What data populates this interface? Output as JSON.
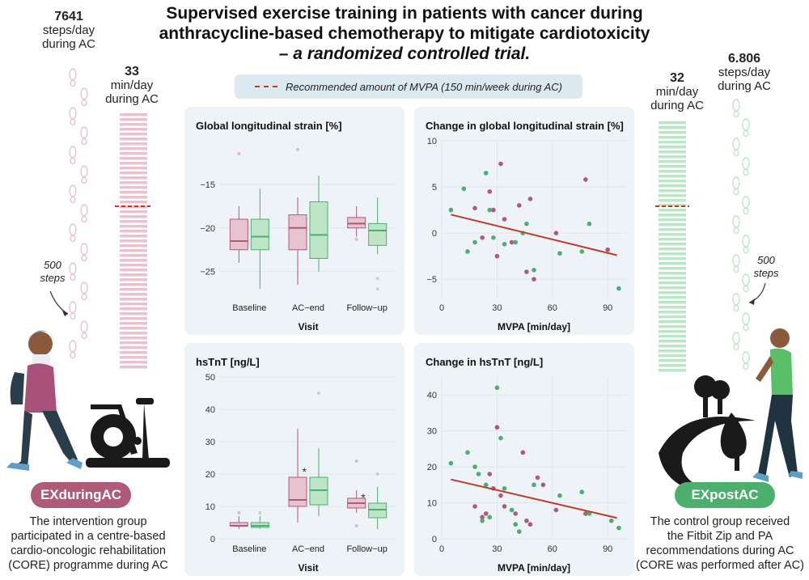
{
  "title": {
    "line1": "Supervised exercise training in patients with cancer during",
    "line2": "anthracycline-based chemotherapy to mitigate cardiotoxicity",
    "line3": "– a randomized controlled trial."
  },
  "legend": {
    "label": "Recommended amount of MVPA (150 min/week during AC)"
  },
  "left": {
    "steps_value": "7641",
    "steps_unit": "steps/day",
    "steps_period": "during AC",
    "min_value": "33",
    "min_unit": "min/day",
    "min_period": "during AC",
    "steps_note_1": "500",
    "steps_note_2": "steps",
    "badge": "EXduringAC",
    "desc_1": "The intervention group",
    "desc_2": "participated in a centre-based",
    "desc_3": "cardio-oncologic rehabilitation",
    "desc_4": "(CORE) programme during AC"
  },
  "right": {
    "steps_value": "6.806",
    "steps_unit": "steps/day",
    "steps_period": "during AC",
    "min_value": "32",
    "min_unit": "min/day",
    "min_period": "during AC",
    "steps_note_1": "500",
    "steps_note_2": "steps",
    "badge": "EXpostAC",
    "desc_1": "The control group received",
    "desc_2": "the Fitbit Zip and PA",
    "desc_3": "recommendations during AC",
    "desc_4": "(CORE was performed after AC)"
  },
  "colors": {
    "ex_during": "#b05a7a",
    "ex_post": "#4caf6e",
    "trend": "#c0392b",
    "ex_during_light": "#e6c3cf",
    "ex_post_light": "#bfe5c9"
  },
  "chart_data": [
    {
      "type": "box",
      "title": "Global longitudinal strain [%]",
      "xlabel": "Visit",
      "categories": [
        "Baseline",
        "AC−end",
        "Follow−up"
      ],
      "ylim": [
        -28,
        -10
      ],
      "yticks": [
        -25,
        -20,
        -15
      ],
      "ytick_labels": [
        "−25",
        "−20",
        "−15"
      ],
      "series": [
        {
          "name": "EXduringAC",
          "boxes": [
            {
              "min": -24,
              "q1": -22.5,
              "median": -21.5,
              "q3": -19,
              "max": -17.5,
              "outliers": [
                -11.5
              ]
            },
            {
              "min": -26.5,
              "q1": -22.5,
              "median": -20,
              "q3": -18.5,
              "max": -16.5,
              "outliers": [
                -11
              ]
            },
            {
              "min": -21,
              "q1": -20,
              "median": -19.5,
              "q3": -18.8,
              "max": -17.5,
              "outliers": [
                -21.3
              ]
            }
          ]
        },
        {
          "name": "EXpostAC",
          "boxes": [
            {
              "min": -27,
              "q1": -22.5,
              "median": -21,
              "q3": -19,
              "max": -15.5,
              "outliers": []
            },
            {
              "min": -25,
              "q1": -23.5,
              "median": -20.8,
              "q3": -17,
              "max": -14,
              "outliers": []
            },
            {
              "min": -23,
              "q1": -22,
              "median": -20.3,
              "q3": -19.5,
              "max": -16.5,
              "outliers": [
                -25.8,
                -27
              ]
            }
          ]
        }
      ]
    },
    {
      "type": "scatter",
      "title": "Change in global longitudinal strain [%]",
      "xlabel": "MVPA [min/day]",
      "xlim": [
        0,
        100
      ],
      "ylim": [
        -7,
        10
      ],
      "xticks": [
        0,
        30,
        60,
        90
      ],
      "yticks": [
        -5,
        0,
        5,
        10
      ],
      "ytick_labels": [
        "−5",
        "0",
        "5",
        "10"
      ],
      "trend": {
        "x": [
          5,
          95
        ],
        "y": [
          2.0,
          -2.4
        ]
      },
      "series": [
        {
          "name": "EXduringAC",
          "points": [
            [
              18,
              2.7
            ],
            [
              22,
              -0.5
            ],
            [
              26,
              4.5
            ],
            [
              28,
              2.5
            ],
            [
              30,
              -2.5
            ],
            [
              32,
              7.5
            ],
            [
              34,
              1.5
            ],
            [
              38,
              -1
            ],
            [
              42,
              3
            ],
            [
              46,
              -4.2
            ],
            [
              48,
              3.7
            ],
            [
              50,
              -5
            ],
            [
              62,
              0
            ],
            [
              78,
              5.8
            ],
            [
              90,
              -1.8
            ]
          ]
        },
        {
          "name": "EXpostAC",
          "points": [
            [
              5,
              2.5
            ],
            [
              12,
              4.8
            ],
            [
              14,
              -2
            ],
            [
              18,
              -1
            ],
            [
              24,
              6.5
            ],
            [
              26,
              2.5
            ],
            [
              28,
              -0.5
            ],
            [
              34,
              -1.2
            ],
            [
              40,
              -1
            ],
            [
              44,
              0
            ],
            [
              46,
              1
            ],
            [
              50,
              -4
            ],
            [
              64,
              -2.2
            ],
            [
              76,
              -2
            ],
            [
              80,
              1
            ],
            [
              96,
              -6
            ]
          ]
        }
      ]
    },
    {
      "type": "box",
      "title": "hsTnT [ng/L]",
      "xlabel": "Visit",
      "categories": [
        "Baseline",
        "AC−end",
        "Follow−up"
      ],
      "ylim": [
        0,
        50
      ],
      "yticks": [
        0,
        10,
        20,
        30,
        40,
        50
      ],
      "ytick_labels": [
        "0",
        "10",
        "20",
        "30",
        "40",
        "50"
      ],
      "annotations": [
        {
          "category": 1,
          "text": "*"
        },
        {
          "category": 2,
          "text": "*"
        }
      ],
      "series": [
        {
          "name": "EXduringAC",
          "boxes": [
            {
              "min": 3,
              "q1": 4,
              "median": 4,
              "q3": 5,
              "max": 7,
              "outliers": [
                8
              ]
            },
            {
              "min": 5,
              "q1": 10,
              "median": 12,
              "q3": 19,
              "max": 34,
              "outliers": []
            },
            {
              "min": 8,
              "q1": 9.5,
              "median": 11,
              "q3": 12.5,
              "max": 15,
              "outliers": [
                24,
                4
              ]
            }
          ]
        },
        {
          "name": "EXpostAC",
          "boxes": [
            {
              "min": 3,
              "q1": 3.5,
              "median": 4,
              "q3": 5,
              "max": 7,
              "outliers": [
                8
              ]
            },
            {
              "min": 7,
              "q1": 10.5,
              "median": 15,
              "q3": 19,
              "max": 28,
              "outliers": [
                45
              ]
            },
            {
              "min": 3,
              "q1": 6.5,
              "median": 9,
              "q3": 11,
              "max": 16,
              "outliers": [
                20
              ]
            }
          ]
        }
      ]
    },
    {
      "type": "scatter",
      "title": "Change in hsTnT [ng/L]",
      "xlabel": "MVPA [min/day]",
      "xlim": [
        0,
        100
      ],
      "ylim": [
        0,
        45
      ],
      "xticks": [
        0,
        30,
        60,
        90
      ],
      "yticks": [
        0,
        10,
        20,
        30,
        40
      ],
      "ytick_labels": [
        "0",
        "10",
        "20",
        "30",
        "40"
      ],
      "trend": {
        "x": [
          5,
          95
        ],
        "y": [
          16.5,
          5.8
        ]
      },
      "series": [
        {
          "name": "EXduringAC",
          "points": [
            [
              18,
              9
            ],
            [
              22,
              6
            ],
            [
              24,
              7
            ],
            [
              26,
              18
            ],
            [
              28,
              14
            ],
            [
              30,
              31
            ],
            [
              32,
              12
            ],
            [
              34,
              9
            ],
            [
              40,
              7
            ],
            [
              44,
              24
            ],
            [
              46,
              5
            ],
            [
              48,
              4
            ],
            [
              52,
              17
            ],
            [
              55,
              15
            ],
            [
              62,
              8
            ],
            [
              78,
              7
            ]
          ]
        },
        {
          "name": "EXpostAC",
          "points": [
            [
              5,
              21
            ],
            [
              14,
              24
            ],
            [
              18,
              20
            ],
            [
              20,
              18
            ],
            [
              22,
              5
            ],
            [
              24,
              15
            ],
            [
              26,
              6
            ],
            [
              30,
              42
            ],
            [
              32,
              28
            ],
            [
              34,
              14
            ],
            [
              38,
              8
            ],
            [
              40,
              4
            ],
            [
              42,
              2
            ],
            [
              50,
              15
            ],
            [
              64,
              12
            ],
            [
              76,
              13
            ],
            [
              80,
              7
            ],
            [
              92,
              5
            ],
            [
              96,
              3
            ]
          ]
        }
      ]
    }
  ]
}
